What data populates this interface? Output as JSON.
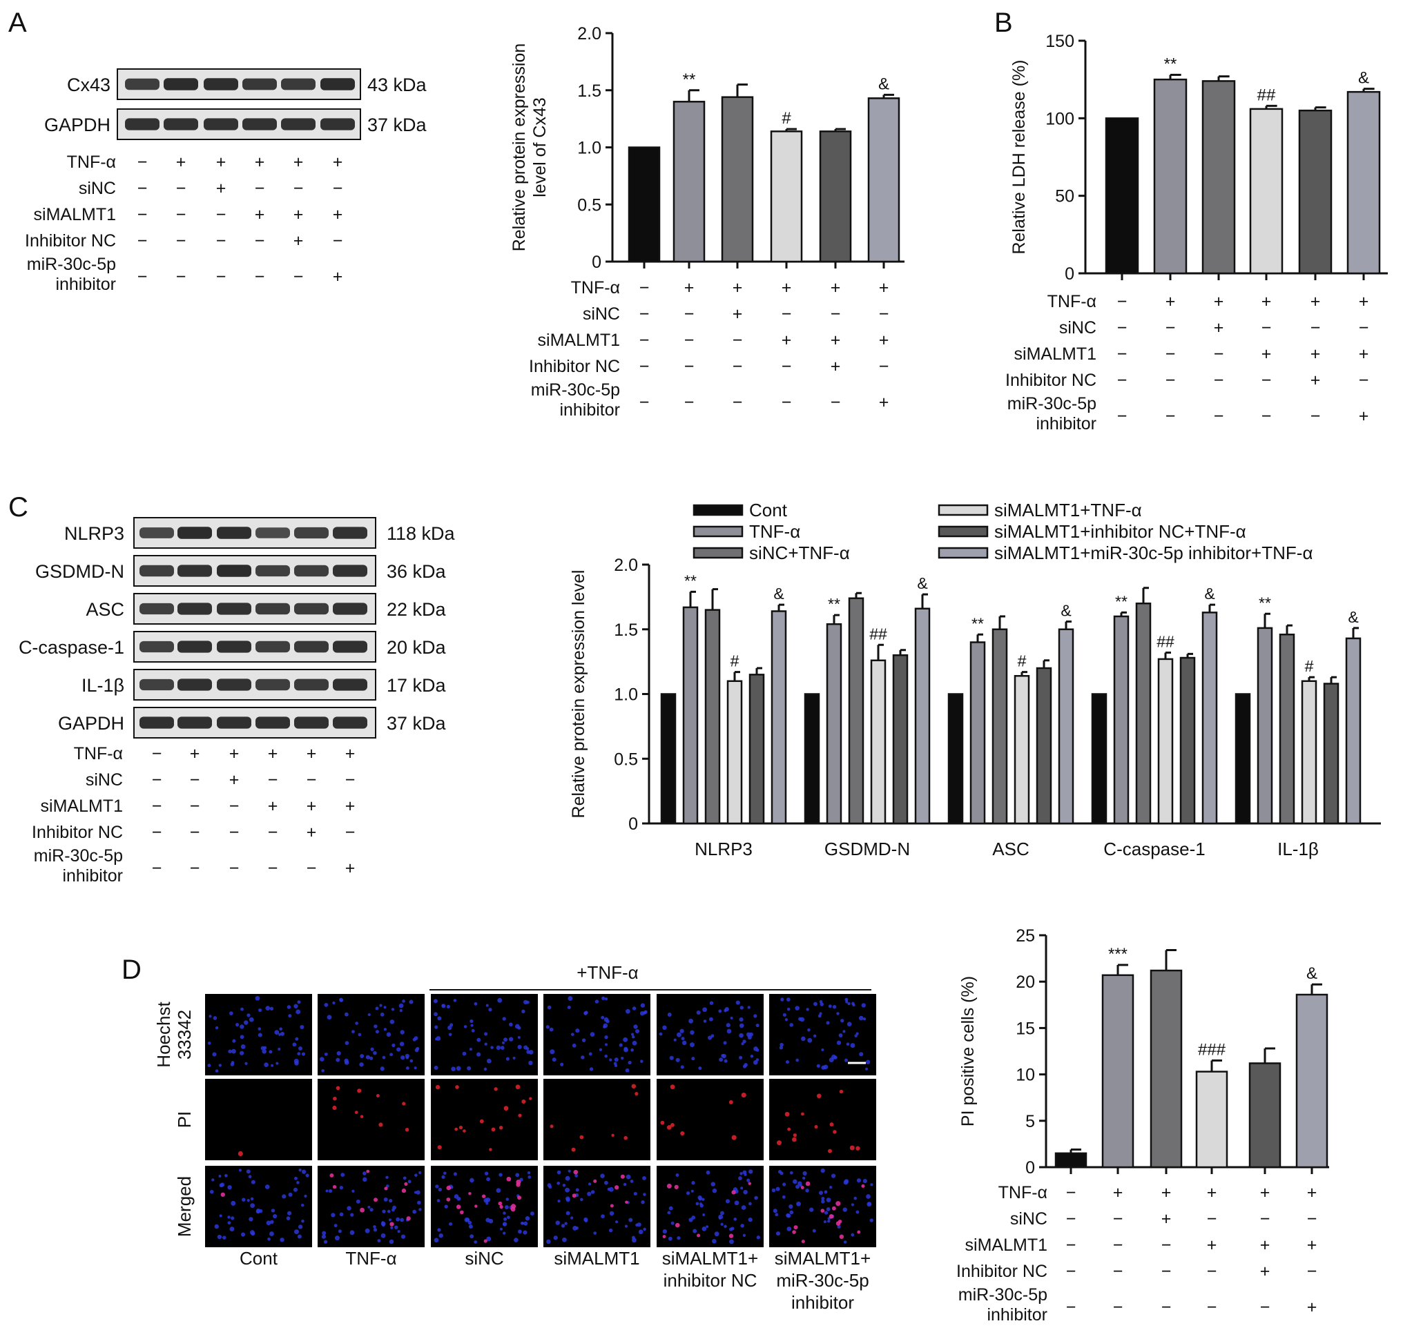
{
  "figure": {
    "panel_labels": [
      "A",
      "B",
      "C",
      "D"
    ],
    "colors": {
      "cont": "#0d0d0d",
      "tnf": "#8f8f99",
      "sinc": "#707072",
      "simalmt1": "#d9d9d9",
      "inhibitor_nc": "#595959",
      "mir_inhibitor": "#9ea1ad",
      "blot_bg": "#e4e4e4",
      "band": "#1c1c1c"
    }
  },
  "treatment_table": {
    "rows": [
      "TNF-α",
      "siNC",
      "siMALMT1",
      "Inhibitor NC",
      "miR-30c-5p|inhibitor"
    ],
    "signs": [
      [
        "−",
        "+",
        "+",
        "+",
        "+",
        "+"
      ],
      [
        "−",
        "−",
        "+",
        "−",
        "−",
        "−"
      ],
      [
        "−",
        "−",
        "−",
        "+",
        "+",
        "+"
      ],
      [
        "−",
        "−",
        "−",
        "−",
        "+",
        "−"
      ],
      [
        "−",
        "−",
        "−",
        "−",
        "−",
        "+"
      ]
    ]
  },
  "blots": {
    "A": {
      "bands": [
        {
          "name": "Cx43",
          "kda": "43 kDa",
          "intensity": [
            0.8,
            0.95,
            0.93,
            0.85,
            0.84,
            0.95
          ]
        },
        {
          "name": "GAPDH",
          "kda": "37 kDa",
          "intensity": [
            0.9,
            0.9,
            0.9,
            0.9,
            0.9,
            0.9
          ]
        }
      ]
    },
    "C": {
      "bands": [
        {
          "name": "NLRP3",
          "kda": "118 kDa",
          "intensity": [
            0.72,
            0.95,
            0.93,
            0.7,
            0.78,
            0.9
          ]
        },
        {
          "name": "GSDMD-N",
          "kda": "36 kDa",
          "intensity": [
            0.8,
            0.9,
            0.95,
            0.78,
            0.8,
            0.9
          ]
        },
        {
          "name": "ASC",
          "kda": "22 kDa",
          "intensity": [
            0.78,
            0.9,
            0.9,
            0.82,
            0.82,
            0.9
          ]
        },
        {
          "name": "C-caspase-1",
          "kda": "20 kDa",
          "intensity": [
            0.78,
            0.92,
            0.92,
            0.8,
            0.85,
            0.92
          ]
        },
        {
          "name": "IL-1β",
          "kda": "17 kDa",
          "intensity": [
            0.78,
            0.92,
            0.9,
            0.8,
            0.84,
            0.92
          ]
        },
        {
          "name": "GAPDH",
          "kda": "37 kDa",
          "intensity": [
            0.92,
            0.92,
            0.92,
            0.92,
            0.92,
            0.92
          ]
        }
      ]
    }
  },
  "microscopy": {
    "top_label": "+TNF-α",
    "row_labels": [
      "Hoechst|33342",
      "PI",
      "Merged"
    ],
    "col_labels": [
      "Cont",
      "TNF-α",
      "siNC",
      "siMALMT1",
      "siMALMT1+|inhibitor NC",
      "siMALMT1+|miR-30c-5p|inhibitor"
    ],
    "pi_cell_counts": [
      1,
      10,
      16,
      7,
      8,
      14
    ]
  },
  "chart_data": [
    {
      "panel": "A",
      "type": "bar",
      "categories": [
        "Cont",
        "TNF-α",
        "siNC+TNF-α",
        "siMALMT1+TNF-α",
        "siMALMT1+inhibitor NC+TNF-α",
        "siMALMT1+miR-30c-5p inhibitor+TNF-α"
      ],
      "values": [
        1.0,
        1.4,
        1.44,
        1.14,
        1.14,
        1.43
      ],
      "errors": [
        0,
        0.1,
        0.11,
        0.02,
        0.02,
        0.03
      ],
      "annotations": [
        "",
        "**",
        "",
        "#",
        "",
        "&"
      ],
      "ylabel": "Relative protein expression|level of Cx43",
      "ylim": [
        0,
        2.0
      ],
      "yticks": [
        "0",
        "0.5",
        "1.0",
        "1.5",
        "2.0"
      ]
    },
    {
      "panel": "B",
      "type": "bar",
      "categories": [
        "Cont",
        "TNF-α",
        "siNC+TNF-α",
        "siMALMT1+TNF-α",
        "siMALMT1+inhibitor NC+TNF-α",
        "siMALMT1+miR-30c-5p inhibitor+TNF-α"
      ],
      "values": [
        100,
        125,
        124,
        106,
        105,
        117
      ],
      "errors": [
        0,
        3,
        3,
        2,
        2,
        2
      ],
      "annotations": [
        "",
        "**",
        "",
        "##",
        "",
        "&"
      ],
      "ylabel": "Relative LDH release (%)",
      "ylim": [
        0,
        150
      ],
      "yticks": [
        "0",
        "50",
        "100",
        "150"
      ]
    },
    {
      "panel": "C",
      "type": "bar",
      "categories": [
        "NLRP3",
        "GSDMD-N",
        "ASC",
        "C-caspase-1",
        "IL-1β"
      ],
      "series": [
        {
          "name": "Cont",
          "values": [
            1.0,
            1.0,
            1.0,
            1.0,
            1.0
          ],
          "errors": [
            0,
            0,
            0,
            0,
            0
          ]
        },
        {
          "name": "TNF-α",
          "values": [
            1.67,
            1.54,
            1.4,
            1.6,
            1.51
          ],
          "errors": [
            0.12,
            0.07,
            0.06,
            0.03,
            0.11
          ]
        },
        {
          "name": "siNC+TNF-α",
          "values": [
            1.65,
            1.74,
            1.5,
            1.7,
            1.46
          ],
          "errors": [
            0.16,
            0.04,
            0.1,
            0.12,
            0.07
          ]
        },
        {
          "name": "siMALMT1+TNF-α",
          "values": [
            1.1,
            1.26,
            1.14,
            1.27,
            1.1
          ],
          "errors": [
            0.07,
            0.12,
            0.03,
            0.05,
            0.03
          ]
        },
        {
          "name": "siMALMT1+inhibitor NC+TNF-α",
          "values": [
            1.15,
            1.3,
            1.2,
            1.28,
            1.08
          ],
          "errors": [
            0.05,
            0.04,
            0.06,
            0.03,
            0.05
          ]
        },
        {
          "name": "siMALMT1+miR-30c-5p inhibitor+TNF-α",
          "values": [
            1.64,
            1.66,
            1.5,
            1.63,
            1.43
          ],
          "errors": [
            0.05,
            0.11,
            0.06,
            0.06,
            0.08
          ]
        }
      ],
      "annotations": [
        [
          "",
          "**",
          "",
          "#",
          "",
          "&"
        ],
        [
          "",
          "**",
          "",
          "##",
          "",
          "&"
        ],
        [
          "",
          "**",
          "",
          "#",
          "",
          "&"
        ],
        [
          "",
          "**",
          "",
          "##",
          "",
          "&"
        ],
        [
          "",
          "**",
          "",
          "#",
          "",
          "&"
        ]
      ],
      "ylabel": "Relative protein expression level",
      "ylim": [
        0,
        2.0
      ],
      "yticks": [
        "0",
        "0.5",
        "1.0",
        "1.5",
        "2.0"
      ],
      "legend": "top"
    },
    {
      "panel": "D",
      "type": "bar",
      "categories": [
        "Cont",
        "TNF-α",
        "siNC+TNF-α",
        "siMALMT1+TNF-α",
        "siMALMT1+inhibitor NC+TNF-α",
        "siMALMT1+miR-30c-5p inhibitor+TNF-α"
      ],
      "values": [
        1.5,
        20.7,
        21.2,
        10.3,
        11.2,
        18.6
      ],
      "errors": [
        0.4,
        1.1,
        2.2,
        1.2,
        1.6,
        1.1
      ],
      "annotations": [
        "",
        "***",
        "",
        "###",
        "",
        "&"
      ],
      "ylabel": "PI positive cells (%)",
      "ylim": [
        0,
        25
      ],
      "yticks": [
        "0",
        "5",
        "10",
        "15",
        "20",
        "25"
      ]
    }
  ]
}
